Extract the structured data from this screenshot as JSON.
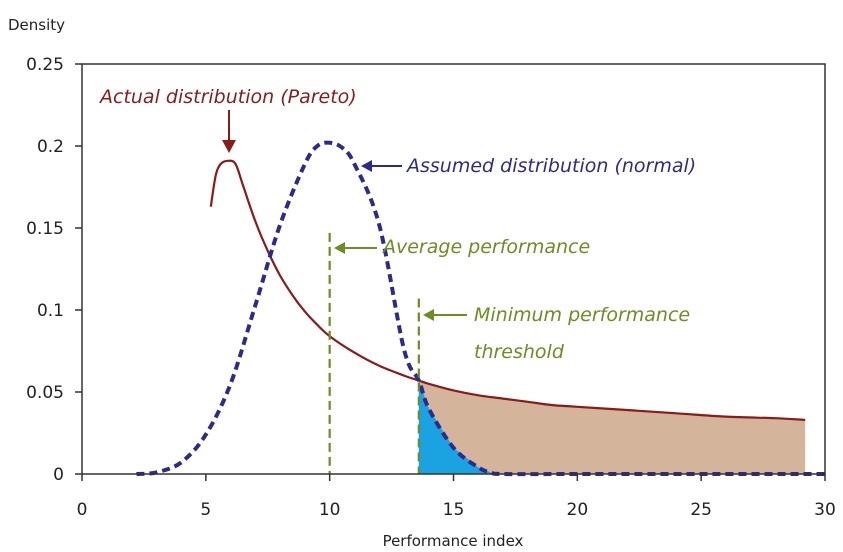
{
  "chart_data": {
    "type": "line",
    "title": "",
    "xlabel": "Performance index",
    "ylabel": "Density",
    "xlim": [
      0,
      30
    ],
    "ylim": [
      0,
      0.25
    ],
    "x_ticks": [
      "0",
      "5",
      "10",
      "15",
      "20",
      "25",
      "30"
    ],
    "y_ticks": [
      "0",
      "0.05",
      "0.1",
      "0.15",
      "0.2",
      "0.25"
    ],
    "grid": false,
    "series": [
      {
        "name": "Actual distribution (Pareto)",
        "style": "solid",
        "color": "#8b1a1a",
        "x": [
          5.2,
          5.4,
          5.6,
          5.9,
          6.2,
          6.5,
          7,
          7.5,
          8,
          8.5,
          9,
          9.5,
          10,
          11,
          12,
          13,
          13.6,
          14,
          15,
          16,
          17,
          18,
          19,
          20,
          22,
          24,
          26,
          28,
          29.2
        ],
        "y": [
          0.163,
          0.182,
          0.189,
          0.191,
          0.189,
          0.176,
          0.154,
          0.136,
          0.121,
          0.109,
          0.099,
          0.091,
          0.084,
          0.074,
          0.066,
          0.06,
          0.057,
          0.055,
          0.051,
          0.048,
          0.046,
          0.044,
          0.042,
          0.041,
          0.039,
          0.037,
          0.035,
          0.034,
          0.033
        ]
      },
      {
        "name": "Assumed distribution (normal)",
        "style": "dashed",
        "color": "#2b2b8f",
        "x": [
          2.2,
          3,
          4,
          5,
          6,
          7,
          8,
          9,
          9.5,
          10,
          10.5,
          11,
          12,
          13,
          13.6,
          14,
          15,
          16,
          16.5,
          17,
          20,
          25,
          30
        ],
        "y": [
          0,
          0.001,
          0.007,
          0.024,
          0.055,
          0.103,
          0.152,
          0.189,
          0.2,
          0.202,
          0.199,
          0.189,
          0.152,
          0.076,
          0.057,
          0.04,
          0.016,
          0.004,
          0.001,
          0,
          0,
          0,
          0
        ]
      }
    ],
    "markers": [
      {
        "label": "Average performance",
        "x": 10,
        "y_top": 0.147,
        "color": "#6b8e23"
      },
      {
        "label": "Minimum performance threshold",
        "x": 13.6,
        "y_top": 0.107,
        "color": "#6b8e23"
      }
    ],
    "shaded_regions": [
      {
        "name": "Pareto tail area",
        "x_from": 13.6,
        "x_to": 29.2,
        "under": "Actual distribution (Pareto)",
        "color": "#d4b49a"
      },
      {
        "name": "Normal tail area",
        "x_from": 13.6,
        "x_to": 17,
        "under": "Assumed distribution (normal)",
        "color": "#1aa3e0"
      }
    ],
    "annotations": [
      {
        "text": "Actual distribution (Pareto)",
        "color": "#8b1a1a"
      },
      {
        "text": "Assumed distribution (normal)",
        "color": "#2b2b8f"
      },
      {
        "text": "Average performance",
        "color": "#6b8e23"
      },
      {
        "text": "Minimum performance",
        "color": "#6b8e23"
      },
      {
        "text": "threshold",
        "color": "#6b8e23"
      }
    ]
  }
}
